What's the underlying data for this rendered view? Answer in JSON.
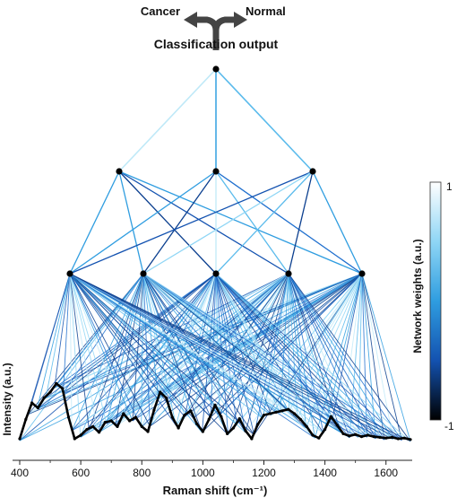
{
  "header": {
    "left_label": "Cancer",
    "right_label": "Normal",
    "output_title": "Classification output"
  },
  "colorbar": {
    "label": "Network weights (a.u.)",
    "max_label": "1",
    "min_label": "-1",
    "colors": [
      "#ffffff",
      "#8fd6f5",
      "#2f9de0",
      "#1352b0",
      "#000000"
    ]
  },
  "axes": {
    "xlabel": "Raman shift (cm⁻¹)",
    "ylabel": "Intensity (a.u.)",
    "xticks": [
      "400",
      "600",
      "800",
      "1000",
      "1200",
      "1400",
      "1600"
    ]
  },
  "network": {
    "layer_sizes": [
      1,
      3,
      5
    ],
    "input_fan": "spectrum points",
    "edge_color_light": "#aee4f7",
    "edge_color_dark": "#0e4fa8"
  },
  "spectrum": {
    "x": [
      400,
      420,
      440,
      460,
      480,
      500,
      520,
      540,
      560,
      580,
      600,
      620,
      640,
      660,
      680,
      700,
      720,
      740,
      760,
      780,
      800,
      820,
      840,
      860,
      880,
      900,
      920,
      940,
      960,
      980,
      1000,
      1020,
      1040,
      1060,
      1080,
      1100,
      1120,
      1140,
      1160,
      1180,
      1200,
      1220,
      1240,
      1260,
      1280,
      1300,
      1320,
      1340,
      1360,
      1380,
      1400,
      1420,
      1440,
      1460,
      1480,
      1500,
      1520,
      1540,
      1560,
      1580,
      1600,
      1620,
      1640,
      1660,
      1680
    ],
    "y": [
      0.05,
      0.32,
      0.55,
      0.48,
      0.62,
      0.7,
      0.82,
      0.75,
      0.35,
      0.05,
      0.1,
      0.18,
      0.22,
      0.14,
      0.28,
      0.3,
      0.22,
      0.4,
      0.3,
      0.35,
      0.22,
      0.15,
      0.45,
      0.7,
      0.62,
      0.35,
      0.2,
      0.38,
      0.44,
      0.26,
      0.15,
      0.32,
      0.52,
      0.36,
      0.12,
      0.2,
      0.33,
      0.16,
      0.05,
      0.25,
      0.38,
      0.4,
      0.42,
      0.44,
      0.46,
      0.4,
      0.32,
      0.22,
      0.1,
      0.06,
      0.18,
      0.36,
      0.24,
      0.12,
      0.09,
      0.11,
      0.08,
      0.1,
      0.08,
      0.07,
      0.06,
      0.07,
      0.05,
      0.06,
      0.04
    ]
  }
}
